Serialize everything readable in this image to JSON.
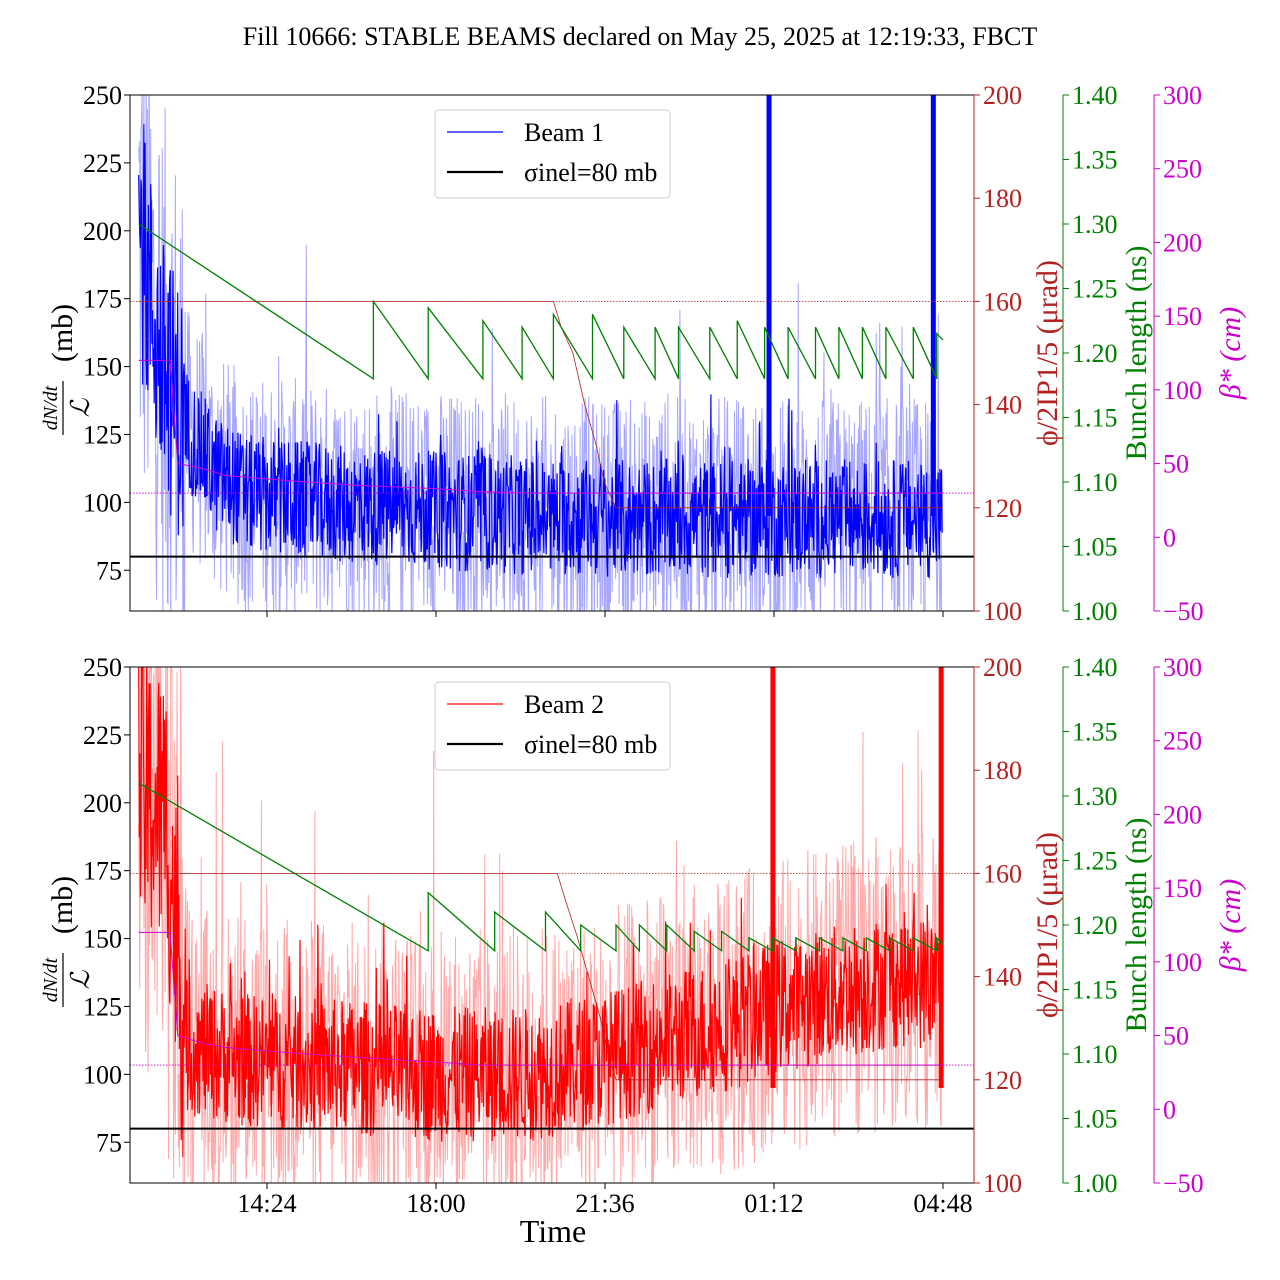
{
  "title": "Fill 10666: STABLE BEAMS declared on May 25, 2025 at 12:19:33, FBCT",
  "xlabel": "Time",
  "colors": {
    "beam1": "#0000ff",
    "beam1_light": "#a7a7ff",
    "beam2": "#ff0000",
    "beam2_light": "#ffaaaa",
    "sigma": "#000000",
    "phi": "#b22222",
    "bunch": "#008000",
    "beta": "#cc00cc"
  },
  "chart_data": [
    {
      "type": "line",
      "panel": "top",
      "ylabel": "dN/dt / ℒ (mb)",
      "ylim": [
        60,
        250
      ],
      "yticks": [
        75,
        100,
        125,
        150,
        175,
        200,
        225,
        250
      ],
      "x_ticks": [
        "14:24",
        "18:00",
        "21:36",
        "01:12",
        "04:48"
      ],
      "legend": {
        "position": "top-center",
        "entries": [
          "Beam 1",
          "σinel=80 mb"
        ]
      },
      "sigma_inel_mb": 80,
      "beam_level_points": [
        [
          "11:40",
          200
        ],
        [
          "12:10",
          150
        ],
        [
          "12:40",
          128
        ],
        [
          "13:20",
          110
        ],
        [
          "14:00",
          103
        ],
        [
          "16:00",
          99
        ],
        [
          "18:00",
          97
        ],
        [
          "20:00",
          95
        ],
        [
          "22:00",
          94
        ],
        [
          "01:00",
          94
        ],
        [
          "04:30",
          94
        ]
      ],
      "beam_noise_amplitude": {
        "dark": 22,
        "light": 45
      },
      "beam_spikes": [
        [
          "01:05",
          250
        ],
        [
          "04:35",
          250
        ]
      ],
      "right_axes": [
        {
          "label": "ϕ/2IP1/5 (μrad)",
          "ticks": [
            100,
            120,
            140,
            160,
            180,
            200
          ],
          "range": [
            100,
            200
          ]
        },
        {
          "label": "Bunch length (ns)",
          "ticks": [
            "1.00",
            "1.05",
            "1.10",
            "1.15",
            "1.20",
            "1.25",
            "1.30",
            "1.35",
            "1.40"
          ],
          "range": [
            1.0,
            1.4
          ]
        },
        {
          "label": "β* (cm)",
          "ticks": [
            -50,
            0,
            50,
            100,
            150,
            200,
            250,
            300
          ],
          "range": [
            -50,
            300
          ]
        }
      ],
      "phi_points": [
        [
          "11:40",
          160
        ],
        [
          "20:30",
          160
        ],
        [
          "20:40",
          155
        ],
        [
          "20:55",
          150
        ],
        [
          "21:10",
          140
        ],
        [
          "21:25",
          132
        ],
        [
          "21:35",
          125
        ],
        [
          "21:50",
          120
        ],
        [
          "04:48",
          120
        ]
      ],
      "phi_dotted": 160,
      "bunch_length_sawtooth": [
        [
          "11:40",
          1.3
        ],
        [
          "16:40",
          1.18
        ],
        [
          "16:40",
          1.24
        ],
        [
          "17:50",
          1.18
        ],
        [
          "17:50",
          1.235
        ],
        [
          "19:00",
          1.18
        ],
        [
          "19:00",
          1.225
        ],
        [
          "19:50",
          1.18
        ],
        [
          "19:50",
          1.22
        ],
        [
          "20:30",
          1.18
        ],
        [
          "20:30",
          1.23
        ],
        [
          "21:20",
          1.18
        ],
        [
          "21:20",
          1.23
        ],
        [
          "22:00",
          1.18
        ],
        [
          "22:00",
          1.22
        ],
        [
          "22:40",
          1.18
        ],
        [
          "22:40",
          1.22
        ],
        [
          "23:10",
          1.18
        ],
        [
          "23:10",
          1.22
        ],
        [
          "23:50",
          1.18
        ],
        [
          "23:50",
          1.22
        ],
        [
          "00:25",
          1.18
        ],
        [
          "00:25",
          1.225
        ],
        [
          "01:00",
          1.18
        ],
        [
          "01:00",
          1.22
        ],
        [
          "01:30",
          1.18
        ],
        [
          "01:30",
          1.22
        ],
        [
          "02:05",
          1.18
        ],
        [
          "02:05",
          1.22
        ],
        [
          "02:35",
          1.18
        ],
        [
          "02:35",
          1.22
        ],
        [
          "03:05",
          1.18
        ],
        [
          "03:05",
          1.22
        ],
        [
          "03:35",
          1.18
        ],
        [
          "03:35",
          1.22
        ],
        [
          "04:10",
          1.18
        ],
        [
          "04:10",
          1.22
        ],
        [
          "04:40",
          1.18
        ],
        [
          "04:40",
          1.215
        ],
        [
          "04:48",
          1.21
        ]
      ],
      "beta_points": [
        [
          "11:40",
          120
        ],
        [
          "12:20",
          120
        ],
        [
          "12:30",
          50
        ],
        [
          "13:00",
          47
        ],
        [
          "13:30",
          42
        ],
        [
          "15:00",
          38
        ],
        [
          "16:30",
          35
        ],
        [
          "18:00",
          33
        ],
        [
          "19:00",
          31
        ],
        [
          "20:00",
          30
        ],
        [
          "04:48",
          30
        ]
      ],
      "beta_dotted": 30
    },
    {
      "type": "line",
      "panel": "bottom",
      "ylabel": "dN/dt / ℒ (mb)",
      "ylim": [
        60,
        250
      ],
      "yticks": [
        75,
        100,
        125,
        150,
        175,
        200,
        225,
        250
      ],
      "x_ticks": [
        "14:24",
        "18:00",
        "21:36",
        "01:12",
        "04:48"
      ],
      "legend": {
        "position": "top-center",
        "entries": [
          "Beam 2",
          "σinel=80 mb"
        ]
      },
      "sigma_inel_mb": 80,
      "beam_level_points": [
        [
          "11:40",
          205
        ],
        [
          "12:15",
          195
        ],
        [
          "12:40",
          110
        ],
        [
          "14:00",
          105
        ],
        [
          "16:00",
          103
        ],
        [
          "18:00",
          100
        ],
        [
          "20:00",
          100
        ],
        [
          "21:36",
          106
        ],
        [
          "23:00",
          113
        ],
        [
          "00:30",
          120
        ],
        [
          "01:12",
          125
        ],
        [
          "02:30",
          130
        ],
        [
          "04:00",
          135
        ],
        [
          "04:45",
          133
        ]
      ],
      "beam_noise_amplitude": {
        "dark": 25,
        "light": 55
      },
      "beam_spikes": [
        [
          "01:10",
          250
        ],
        [
          "04:45",
          250
        ]
      ],
      "right_axes": [
        {
          "label": "ϕ/2IP1/5 (μrad)",
          "ticks": [
            100,
            120,
            140,
            160,
            180,
            200
          ],
          "range": [
            100,
            200
          ]
        },
        {
          "label": "Bunch length (ns)",
          "ticks": [
            "1.00",
            "1.05",
            "1.10",
            "1.15",
            "1.20",
            "1.25",
            "1.30",
            "1.35",
            "1.40"
          ],
          "range": [
            1.0,
            1.4
          ]
        },
        {
          "label": "β* (cm)",
          "ticks": [
            -50,
            0,
            50,
            100,
            150,
            200,
            250,
            300
          ],
          "range": [
            -50,
            300
          ]
        }
      ],
      "phi_points": [
        [
          "11:40",
          160
        ],
        [
          "20:35",
          160
        ],
        [
          "20:45",
          155
        ],
        [
          "21:00",
          148
        ],
        [
          "21:15",
          140
        ],
        [
          "21:30",
          132
        ],
        [
          "21:40",
          125
        ],
        [
          "21:50",
          120
        ],
        [
          "04:48",
          120
        ]
      ],
      "phi_dotted": 160,
      "bunch_length_sawtooth": [
        [
          "11:40",
          1.31
        ],
        [
          "17:50",
          1.18
        ],
        [
          "17:50",
          1.225
        ],
        [
          "19:15",
          1.18
        ],
        [
          "19:15",
          1.21
        ],
        [
          "20:20",
          1.18
        ],
        [
          "20:20",
          1.21
        ],
        [
          "21:05",
          1.18
        ],
        [
          "21:05",
          1.2
        ],
        [
          "21:50",
          1.18
        ],
        [
          "21:50",
          1.2
        ],
        [
          "22:20",
          1.18
        ],
        [
          "22:20",
          1.2
        ],
        [
          "22:55",
          1.18
        ],
        [
          "22:55",
          1.2
        ],
        [
          "23:30",
          1.18
        ],
        [
          "23:30",
          1.195
        ],
        [
          "00:05",
          1.18
        ],
        [
          "00:05",
          1.195
        ],
        [
          "00:40",
          1.18
        ],
        [
          "00:40",
          1.19
        ],
        [
          "01:10",
          1.18
        ],
        [
          "01:10",
          1.19
        ],
        [
          "01:40",
          1.18
        ],
        [
          "01:40",
          1.19
        ],
        [
          "02:10",
          1.18
        ],
        [
          "02:10",
          1.19
        ],
        [
          "02:40",
          1.18
        ],
        [
          "02:40",
          1.19
        ],
        [
          "03:10",
          1.18
        ],
        [
          "03:10",
          1.19
        ],
        [
          "03:40",
          1.18
        ],
        [
          "03:40",
          1.19
        ],
        [
          "04:10",
          1.18
        ],
        [
          "04:10",
          1.19
        ],
        [
          "04:40",
          1.18
        ],
        [
          "04:40",
          1.19
        ],
        [
          "04:48",
          1.185
        ]
      ],
      "beta_points": [
        [
          "11:40",
          120
        ],
        [
          "12:20",
          120
        ],
        [
          "12:30",
          50
        ],
        [
          "13:00",
          45
        ],
        [
          "13:30",
          42
        ],
        [
          "15:00",
          38
        ],
        [
          "16:30",
          35
        ],
        [
          "18:00",
          32
        ],
        [
          "19:00",
          30
        ],
        [
          "20:00",
          30
        ],
        [
          "04:48",
          30
        ]
      ],
      "beta_dotted": 30
    }
  ]
}
